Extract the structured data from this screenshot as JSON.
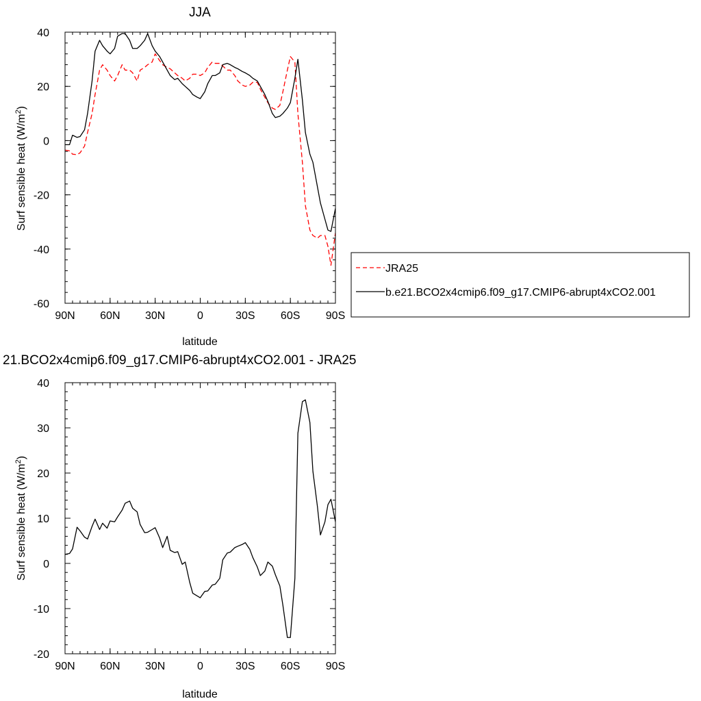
{
  "chart_data": [
    {
      "type": "line",
      "title": "JJA",
      "xlabel": "latitude",
      "ylabel": "Surf sensible heat (W/m",
      "ylabel_sup": "2",
      "ylabel_end": ")",
      "xlim": [
        -90,
        90
      ],
      "ylim": [
        -60,
        40
      ],
      "x_ticks": [
        -90,
        -60,
        -30,
        0,
        30,
        60,
        90
      ],
      "x_tick_labels": [
        "90N",
        "60N",
        "30N",
        "0",
        "30S",
        "60S",
        "90S"
      ],
      "y_ticks": [
        -60,
        -40,
        -20,
        0,
        20,
        40
      ],
      "y_tick_labels": [
        "-60",
        "-40",
        "-20",
        "0",
        "20",
        "40"
      ],
      "grid": false,
      "legend_position": "right",
      "series": [
        {
          "name": "JRA25",
          "color": "#ff0000",
          "dash": "dashed",
          "x": [
            -90,
            -87,
            -85,
            -82,
            -80,
            -77,
            -75,
            -72,
            -70,
            -67,
            -65,
            -62,
            -60,
            -57,
            -55,
            -52,
            -50,
            -47,
            -45,
            -42,
            -40,
            -37,
            -35,
            -32,
            -30,
            -27,
            -25,
            -22,
            -20,
            -17,
            -15,
            -12,
            -10,
            -7,
            -5,
            -2,
            0,
            3,
            5,
            8,
            10,
            13,
            15,
            18,
            20,
            23,
            25,
            28,
            30,
            33,
            35,
            38,
            40,
            43,
            45,
            48,
            50,
            53,
            55,
            58,
            60,
            63,
            65,
            68,
            70,
            73,
            75,
            78,
            80,
            83,
            85,
            87,
            90
          ],
          "values": [
            -3.5,
            -3.8,
            -5,
            -5.2,
            -4.5,
            -2,
            3,
            10,
            17,
            26,
            28,
            26,
            24,
            22,
            24,
            28,
            26,
            26,
            25,
            22,
            26,
            27,
            28,
            29,
            32,
            29.5,
            28,
            27,
            26.5,
            25,
            24,
            23,
            22,
            23,
            24.5,
            24.5,
            24,
            25,
            27,
            29,
            28.5,
            28.5,
            27.5,
            26,
            26,
            24,
            22,
            20.5,
            20,
            20.5,
            21.5,
            21.5,
            19,
            16,
            14,
            12,
            11.5,
            13,
            18,
            26,
            31,
            29,
            10,
            -8,
            -24,
            -33,
            -35,
            -36,
            -35,
            -35,
            -39,
            -46,
            -34
          ]
        },
        {
          "name": "b.e21.BCO2x4cmip6.f09_g17.CMIP6-abrupt4xCO2.001",
          "color": "#000000",
          "dash": "solid",
          "x": [
            -90,
            -87,
            -85,
            -82,
            -80,
            -77,
            -75,
            -72,
            -70,
            -67,
            -65,
            -62,
            -60,
            -57,
            -55,
            -52,
            -50,
            -47,
            -45,
            -42,
            -40,
            -37,
            -35,
            -32,
            -30,
            -27,
            -25,
            -22,
            -20,
            -17,
            -15,
            -12,
            -10,
            -7,
            -5,
            -2,
            0,
            3,
            5,
            8,
            10,
            13,
            15,
            18,
            20,
            23,
            25,
            28,
            30,
            33,
            35,
            38,
            40,
            43,
            45,
            48,
            50,
            53,
            55,
            58,
            60,
            63,
            65,
            68,
            70,
            73,
            75,
            78,
            80,
            83,
            85,
            87,
            90
          ],
          "values": [
            -1.5,
            -1.5,
            2,
            1.2,
            1.5,
            4,
            10,
            22,
            33,
            37,
            35,
            33,
            32,
            34,
            38.5,
            39.5,
            39.5,
            37,
            34,
            34,
            35,
            37,
            39.5,
            35,
            33,
            31,
            29,
            26,
            24,
            22.5,
            23,
            21,
            20,
            18.5,
            17,
            16,
            15.5,
            18,
            21,
            24,
            24,
            25,
            28,
            28.5,
            28,
            27,
            26.5,
            25.5,
            25,
            24,
            23,
            22,
            20,
            17,
            14.5,
            10,
            8.5,
            9,
            10,
            12,
            14,
            23,
            30,
            15,
            3,
            -5,
            -8,
            -17,
            -23,
            -29,
            -33,
            -33.5,
            -25
          ]
        }
      ]
    },
    {
      "type": "line",
      "title": "21.BCO2x4cmip6.f09_g17.CMIP6-abrupt4xCO2.001 - JRA25",
      "xlabel": "latitude",
      "ylabel": "Surf sensible heat (W/m",
      "ylabel_sup": "2",
      "ylabel_end": ")",
      "xlim": [
        -90,
        90
      ],
      "ylim": [
        -20,
        40
      ],
      "x_ticks": [
        -90,
        -60,
        -30,
        0,
        30,
        60,
        90
      ],
      "x_tick_labels": [
        "90N",
        "60N",
        "30N",
        "0",
        "30S",
        "60S",
        "90S"
      ],
      "y_ticks": [
        -20,
        -10,
        0,
        10,
        20,
        30,
        40
      ],
      "y_tick_labels": [
        "-20",
        "-10",
        "0",
        "10",
        "20",
        "30",
        "40"
      ],
      "grid": false,
      "series": [
        {
          "color": "#000000",
          "dash": "solid",
          "x": [
            -90,
            -87,
            -85,
            -82,
            -80,
            -77,
            -75,
            -72,
            -70,
            -67,
            -65,
            -62,
            -60,
            -57,
            -55,
            -52,
            -50,
            -47,
            -45,
            -42,
            -40,
            -37,
            -35,
            -32,
            -30,
            -27,
            -25,
            -22,
            -20,
            -17,
            -15,
            -12,
            -10,
            -7,
            -5,
            -2,
            0,
            3,
            5,
            8,
            10,
            13,
            15,
            18,
            20,
            23,
            25,
            28,
            30,
            33,
            35,
            38,
            40,
            43,
            45,
            48,
            50,
            53,
            55,
            58,
            60,
            63,
            65,
            68,
            70,
            73,
            75,
            78,
            80,
            83,
            85,
            87,
            90
          ],
          "values": [
            2,
            2.2,
            3.2,
            8,
            7.2,
            5.8,
            5.4,
            8.2,
            9.8,
            7.5,
            8.9,
            7.8,
            9.4,
            9.2,
            10.3,
            11.8,
            13.3,
            13.8,
            12.2,
            11.4,
            8.6,
            6.8,
            6.9,
            7.5,
            7.9,
            5.6,
            3.5,
            6,
            2.9,
            2.4,
            2.6,
            -0.2,
            0.3,
            -4.2,
            -6.6,
            -7.2,
            -7.6,
            -6.2,
            -6.1,
            -4.8,
            -4.6,
            -3.3,
            0.8,
            2.3,
            2.5,
            3.5,
            3.8,
            4.2,
            4.6,
            3.1,
            1.3,
            -0.8,
            -2.7,
            -1.7,
            0.3,
            -0.6,
            -2.5,
            -5,
            -9.2,
            -16.4,
            -16.4,
            -3.3,
            28.8,
            35.8,
            36.2,
            31.2,
            20.4,
            12.6,
            6.3,
            9.2,
            13,
            14.2,
            9.2
          ]
        }
      ]
    }
  ]
}
